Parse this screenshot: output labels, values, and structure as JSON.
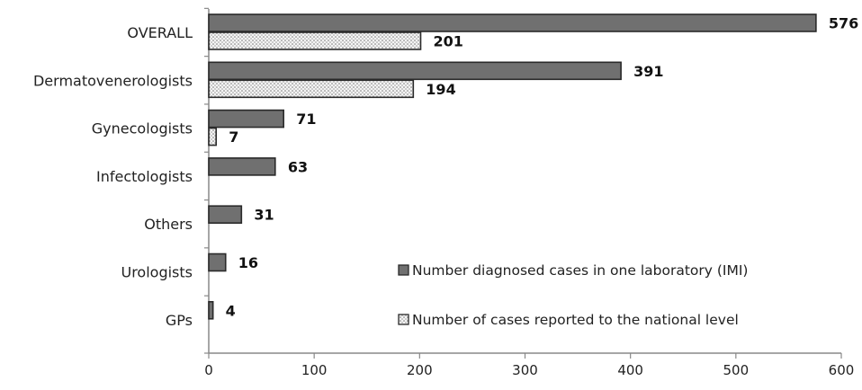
{
  "chart_data": {
    "type": "bar",
    "orientation": "horizontal",
    "categories": [
      "OVERALL",
      "Dermatovenerologists",
      "Gynecologists",
      "Infectologists",
      "Others",
      "Urologists",
      "GPs"
    ],
    "series": [
      {
        "name": "Number diagnosed cases in one laboratory (IMI)",
        "values": [
          576,
          391,
          71,
          63,
          31,
          16,
          4
        ],
        "color": "#707070",
        "pattern": "solid"
      },
      {
        "name": "Number of cases reported to the national level",
        "values": [
          201,
          194,
          7,
          null,
          null,
          null,
          null
        ],
        "color": "#f0f0f0",
        "pattern": "dotted"
      }
    ],
    "xlim": [
      0,
      600
    ],
    "xticks": [
      0,
      100,
      200,
      300,
      400,
      500,
      600
    ],
    "title": "",
    "xlabel": "",
    "ylabel": "",
    "grid": false,
    "legend_position": "bottom-right"
  }
}
